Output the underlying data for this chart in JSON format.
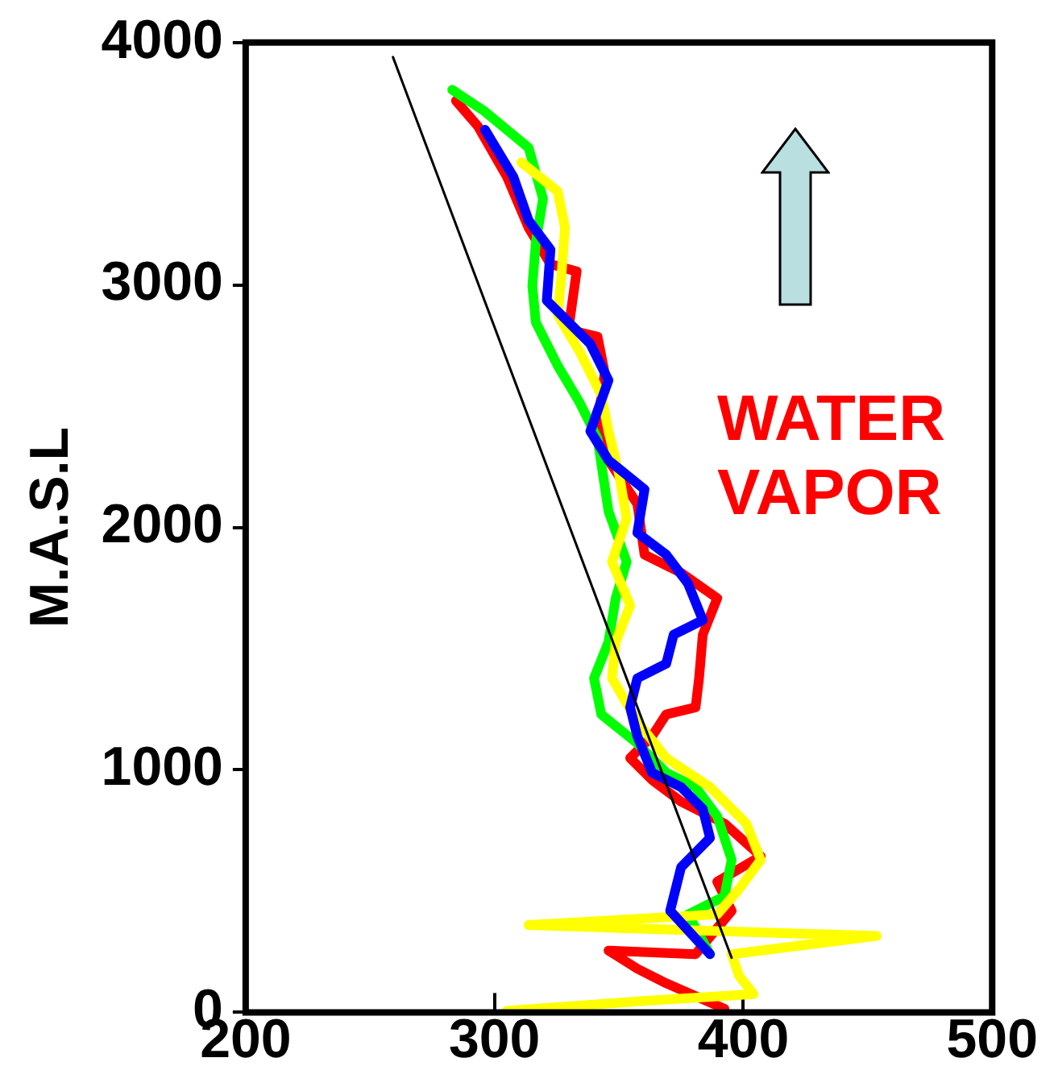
{
  "chart_data": {
    "type": "line",
    "ylabel": "M.A.S.L",
    "xlim": [
      200,
      500
    ],
    "ylim": [
      0,
      4000
    ],
    "xticks": [
      200,
      300,
      400,
      500
    ],
    "yticks": [
      0,
      1000,
      2000,
      3000,
      4000
    ],
    "marker": "none",
    "line_style": "solid",
    "annotations": [
      "WATER VAPOR"
    ],
    "series": [
      {
        "type": "line",
        "color": "#ff0000",
        "x": [
          284.5,
          293.3,
          305,
          313.7,
          322.5,
          333,
          329.7,
          341.4,
          344.3,
          341.4,
          345.8,
          357.4,
          360.3,
          375,
          389.5,
          383.7,
          382.2,
          380.8,
          369,
          363.3,
          354.5,
          363.3,
          375,
          392.4,
          407,
          389.5,
          395.3,
          380.8,
          345.8,
          357.4,
          369,
          392.4
        ],
        "values": [
          3760,
          3655,
          3446,
          3236,
          3086,
          3056,
          2816,
          2787,
          2637,
          2427,
          2277,
          2097,
          1888,
          1813,
          1708,
          1558,
          1378,
          1258,
          1229,
          1139,
          1049,
          959,
          869,
          779,
          644,
          539,
          419,
          240,
          255,
          180,
          120,
          15
        ]
      },
      {
        "type": "line",
        "color": "#00ff00",
        "x": [
          283,
          296.2,
          313.7,
          319.5,
          316.6,
          315.2,
          316.6,
          325.4,
          334.1,
          341.4,
          345.8,
          353.1,
          348.7,
          345.8,
          340,
          342.9,
          357.4,
          369,
          380.8,
          389.5,
          395.3,
          392.4,
          377.8,
          386.6
        ],
        "values": [
          3805,
          3715,
          3566,
          3356,
          3176,
          2996,
          2846,
          2667,
          2517,
          2367,
          2067,
          1858,
          1708,
          1528,
          1378,
          1229,
          1109,
          989,
          929,
          809,
          629,
          479,
          404,
          240
        ]
      },
      {
        "type": "line",
        "color": "#ffff00",
        "x": [
          310.8,
          325.4,
          328.3,
          326.8,
          325.4,
          334.1,
          342.9,
          345.8,
          350.1,
          353.1,
          347.2,
          354.5,
          348.7,
          347.2,
          357.4,
          369,
          386.6,
          401.2,
          407,
          398.3,
          389.5,
          313.7,
          453.6,
          395.3,
          398.3,
          404.1,
          357.4,
          304.9
        ],
        "values": [
          3506,
          3386,
          3236,
          3026,
          2876,
          2727,
          2547,
          2397,
          2217,
          2037,
          1858,
          1678,
          1528,
          1378,
          1199,
          1049,
          929,
          779,
          629,
          509,
          404,
          360,
          315,
          240,
          150,
          75,
          45,
          6
        ]
      },
      {
        "type": "line",
        "color": "#0000ff",
        "x": [
          296.2,
          307.6,
          313.7,
          322.5,
          321,
          338.5,
          345.8,
          338.5,
          345.8,
          360.3,
          357.4,
          369,
          377.8,
          383.7,
          372,
          369,
          357.4,
          354.5,
          357.4,
          363.3,
          375,
          383.7,
          386.6,
          375,
          370.6,
          386.6
        ],
        "values": [
          3640,
          3446,
          3266,
          3146,
          2936,
          2757,
          2607,
          2397,
          2277,
          2157,
          1978,
          1888,
          1768,
          1618,
          1558,
          1438,
          1378,
          1258,
          1139,
          989,
          929,
          839,
          719,
          599,
          419,
          240
        ]
      },
      {
        "type": "line",
        "color": "#000000",
        "x": [
          259.2,
          395.3
        ],
        "values": [
          3940,
          225
        ]
      }
    ]
  }
}
